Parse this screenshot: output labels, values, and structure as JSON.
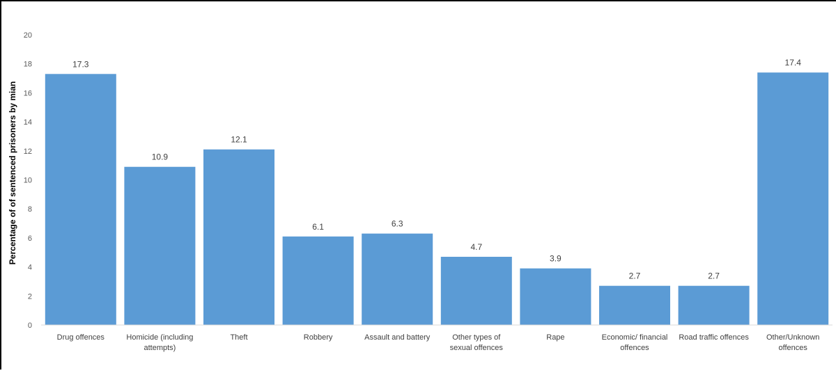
{
  "chart_data": {
    "type": "bar",
    "title": "",
    "xlabel": "",
    "ylabel": "Percentage of of sentenced prisoners by mian",
    "ylim": [
      0,
      20
    ],
    "yticks": [
      0,
      2,
      4,
      6,
      8,
      10,
      12,
      14,
      16,
      18,
      20
    ],
    "grid": false,
    "legend": "none",
    "bar_color": "#5b9bd5",
    "categories": [
      [
        "Drug offences"
      ],
      [
        "Homicide (including",
        "attempts)"
      ],
      [
        "Theft"
      ],
      [
        "Robbery"
      ],
      [
        "Assault and battery"
      ],
      [
        "Other types of",
        "sexual offences"
      ],
      [
        "Rape"
      ],
      [
        "Economic/ financial",
        "offences"
      ],
      [
        "Road traffic offences"
      ],
      [
        "Other/Unknown",
        "offences"
      ]
    ],
    "values": [
      17.3,
      10.9,
      12.1,
      6.1,
      6.3,
      4.7,
      3.9,
      2.7,
      2.7,
      17.4
    ],
    "value_labels": [
      "17.3",
      "10.9",
      "12.1",
      "6.1",
      "6.3",
      "4.7",
      "3.9",
      "2.7",
      "2.7",
      "17.4"
    ]
  }
}
